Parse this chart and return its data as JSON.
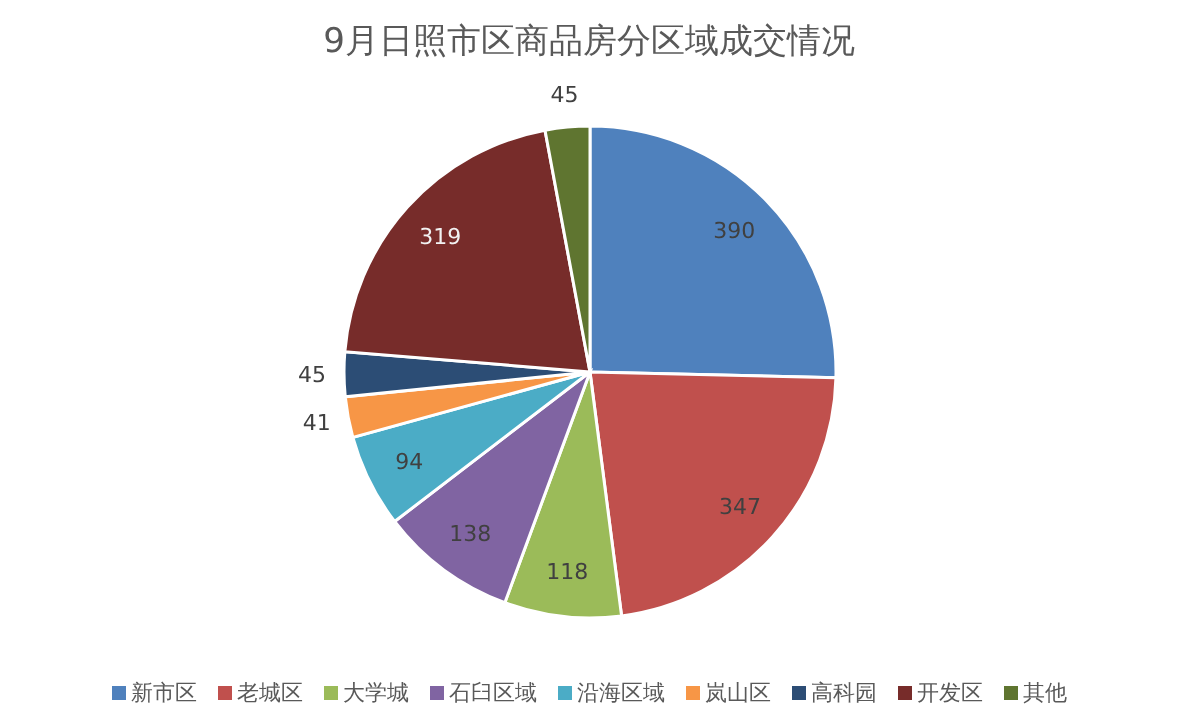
{
  "chart_data": {
    "type": "pie",
    "title": "9月日照市区商品房分区域成交情况",
    "categories": [
      "新市区",
      "老城区",
      "大学城",
      "石臼区域",
      "沿海区域",
      "岚山区",
      "高科园",
      "开发区",
      "其他"
    ],
    "values": [
      390,
      347,
      118,
      138,
      94,
      41,
      45,
      319,
      45
    ],
    "colors": [
      "#4f81bd",
      "#c0504d",
      "#9bbb59",
      "#8064a2",
      "#4bacc6",
      "#f79646",
      "#2c4d75",
      "#772c2a",
      "#5f7530"
    ],
    "data_labels": true,
    "legend": "bottom"
  }
}
